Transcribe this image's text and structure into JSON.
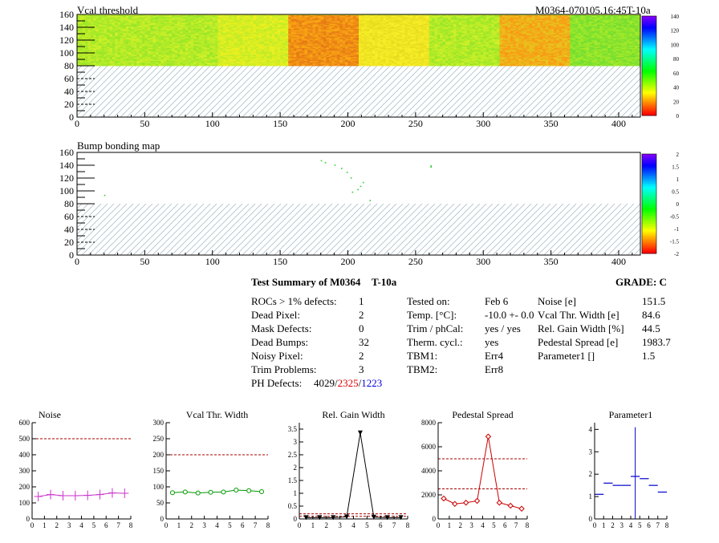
{
  "header": {
    "left_title": "Vcal threshold",
    "right_title": "M0364-070105.16:45T-10a"
  },
  "map1": {
    "title": "Vcal threshold",
    "y_ticks": [
      "0",
      "20",
      "40",
      "60",
      "80",
      "100",
      "120",
      "140",
      "160"
    ],
    "x_ticks": [
      "0",
      "50",
      "100",
      "150",
      "200",
      "250",
      "300",
      "350",
      "400"
    ],
    "palette_labels": [
      "140",
      "120",
      "100",
      "80",
      "60",
      "40",
      "20",
      "0"
    ],
    "data_rows": [
      80,
      160
    ],
    "columns_range": [
      0,
      416
    ],
    "segments": [
      {
        "x": [
          0,
          52
        ],
        "level": "green-yellow"
      },
      {
        "x": [
          52,
          104
        ],
        "level": "green-yellow"
      },
      {
        "x": [
          104,
          156
        ],
        "level": "yellow-green"
      },
      {
        "x": [
          156,
          208
        ],
        "level": "orange-red"
      },
      {
        "x": [
          208,
          260
        ],
        "level": "yellow"
      },
      {
        "x": [
          260,
          312
        ],
        "level": "green-yellow"
      },
      {
        "x": [
          312,
          364
        ],
        "level": "yellow-orange"
      },
      {
        "x": [
          364,
          416
        ],
        "level": "green"
      }
    ]
  },
  "map2": {
    "title": "Bump bonding map",
    "y_ticks": [
      "0",
      "20",
      "40",
      "60",
      "80",
      "100",
      "120",
      "140",
      "160"
    ],
    "x_ticks": [
      "0",
      "50",
      "100",
      "150",
      "200",
      "250",
      "300",
      "350",
      "400"
    ],
    "palette_labels": [
      "2",
      "1.5",
      "1",
      "0.5",
      "0",
      "-0.5",
      "-1",
      "-1.5",
      "-2"
    ],
    "dead_bumps": [
      [
        180,
        148
      ],
      [
        183,
        145
      ],
      [
        190,
        141
      ],
      [
        195,
        136
      ],
      [
        199,
        130
      ],
      [
        202,
        121
      ],
      [
        203,
        99
      ],
      [
        207,
        103
      ],
      [
        209,
        108
      ],
      [
        211,
        114
      ],
      [
        216,
        86
      ],
      [
        261,
        138
      ],
      [
        261,
        140
      ],
      [
        20,
        94
      ]
    ]
  },
  "summary": {
    "title": "Test Summary of M0364",
    "subtitle": "T-10a",
    "grade": "GRADE:  C",
    "left": [
      {
        "label": "ROCs > 1% defects:",
        "value": "1"
      },
      {
        "label": "Dead Pixel:",
        "value": "2"
      },
      {
        "label": "Mask Defects:",
        "value": "0"
      },
      {
        "label": "Dead Bumps:",
        "value": "32"
      },
      {
        "label": "Noisy Pixel:",
        "value": "2"
      },
      {
        "label": "Trim Problems:",
        "value": "3"
      }
    ],
    "ph_label": "PH Defects:",
    "ph_a": "4029",
    "ph_sep1": "/",
    "ph_b": "2325",
    "ph_sep2": "/",
    "ph_c": "1223",
    "middle": [
      {
        "label": "Tested on:",
        "value": "Feb 6"
      },
      {
        "label": "Temp. [°C]:",
        "value": "-10.0 +- 0.0"
      },
      {
        "label": "Trim / phCal:",
        "value": "yes / yes"
      },
      {
        "label": "Therm. cycl.:",
        "value": "yes"
      },
      {
        "label": "TBM1:",
        "value": "Err4"
      },
      {
        "label": "TBM2:",
        "value": "Err8"
      }
    ],
    "right": [
      {
        "label": "Noise [e]",
        "value": "151.5"
      },
      {
        "label": "Vcal Thr. Width [e]",
        "value": "84.6"
      },
      {
        "label": "Rel. Gain Width [%]",
        "value": "44.5"
      },
      {
        "label": "Pedestal Spread [e]",
        "value": "1983.7"
      },
      {
        "label": "Parameter1 []",
        "value": "1.5"
      }
    ]
  },
  "chart_data": [
    {
      "type": "line",
      "title": "Noise",
      "x": [
        0.5,
        1.5,
        2.5,
        3.5,
        4.5,
        5.5,
        6.5,
        7.5
      ],
      "values": [
        140,
        152,
        145,
        145,
        147,
        152,
        162,
        160
      ],
      "ylim": [
        0,
        600
      ],
      "xlim": [
        0,
        8
      ],
      "y_ticks": [
        "0",
        "100",
        "200",
        "300",
        "400",
        "500",
        "600"
      ],
      "x_ticks": [
        "0",
        "1",
        "2",
        "3",
        "4",
        "5",
        "6",
        "7",
        "8"
      ],
      "cut_lines": [
        500
      ],
      "color": "#cc33cc",
      "style": "errorbar"
    },
    {
      "type": "line",
      "title": "Vcal Thr. Width",
      "x": [
        0.5,
        1.5,
        2.5,
        3.5,
        4.5,
        5.5,
        6.5,
        7.5
      ],
      "values": [
        82,
        84,
        81,
        83,
        84,
        90,
        88,
        85
      ],
      "ylim": [
        0,
        300
      ],
      "xlim": [
        0,
        8
      ],
      "y_ticks": [
        "0",
        "50",
        "100",
        "150",
        "200",
        "250",
        "300"
      ],
      "x_ticks": [
        "0",
        "1",
        "2",
        "3",
        "4",
        "5",
        "6",
        "7",
        "8"
      ],
      "cut_lines": [
        200
      ],
      "color": "#009900",
      "style": "circle"
    },
    {
      "type": "line",
      "title": "Rel. Gain Width",
      "x": [
        0.5,
        1.5,
        2.5,
        3.5,
        4.5,
        5.5,
        6.5,
        7.5
      ],
      "values": [
        0.05,
        0.05,
        0.05,
        0.08,
        3.35,
        0.07,
        0.05,
        0.05
      ],
      "ylim": [
        0,
        3.75
      ],
      "xlim": [
        0,
        8
      ],
      "y_ticks": [
        "0",
        "0.5",
        "1",
        "1.5",
        "2",
        "2.5",
        "3",
        "3.5"
      ],
      "x_ticks": [
        "0",
        "1",
        "2",
        "3",
        "4",
        "5",
        "6",
        "7",
        "8"
      ],
      "cut_lines": [
        0.1,
        0.2
      ],
      "color": "#000000",
      "style": "triangle"
    },
    {
      "type": "line",
      "title": "Pedestal Spread",
      "x": [
        0.5,
        1.5,
        2.5,
        3.5,
        4.5,
        5.5,
        6.5,
        7.5
      ],
      "values": [
        1700,
        1250,
        1350,
        1500,
        6850,
        1350,
        1100,
        850
      ],
      "ylim": [
        0,
        8000
      ],
      "xlim": [
        0,
        8
      ],
      "y_ticks": [
        "0",
        "2000",
        "4000",
        "6000",
        "8000"
      ],
      "x_ticks": [
        "0",
        "1",
        "2",
        "3",
        "4",
        "5",
        "6",
        "7",
        "8"
      ],
      "cut_lines": [
        2500,
        5000
      ],
      "color": "#cc0000",
      "style": "diamond"
    },
    {
      "type": "scatter",
      "title": "Parameter1",
      "x": [
        0.5,
        1.5,
        2.5,
        3.5,
        4.5,
        5.5,
        6.5,
        7.5
      ],
      "values": [
        1.1,
        1.6,
        1.5,
        1.5,
        1.9,
        1.8,
        1.5,
        1.2
      ],
      "error": [
        0,
        0,
        0,
        0,
        2.2,
        0,
        0,
        0
      ],
      "ylim": [
        0,
        4.3
      ],
      "xlim": [
        0,
        8
      ],
      "y_ticks": [
        "0",
        "1",
        "2",
        "3",
        "4"
      ],
      "x_ticks": [
        "0",
        "1",
        "2",
        "3",
        "4",
        "5",
        "6",
        "7",
        "8"
      ],
      "cut_lines": [],
      "color": "#0000cc",
      "style": "hbar"
    }
  ]
}
